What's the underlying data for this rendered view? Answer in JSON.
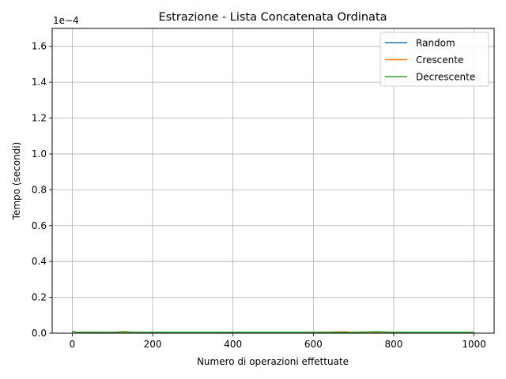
{
  "chart_data": {
    "type": "line",
    "title": "Estrazione - Lista Concatenata Ordinata",
    "xlabel": "Numero di operazioni effettuate",
    "ylabel": "Tempo (secondi)",
    "y_offset_label": "1e−4",
    "xlim": [
      -50,
      1050
    ],
    "ylim": [
      0,
      1.7
    ],
    "y_scale_note": "values shown in units of 1e-4 seconds",
    "x_ticks": [
      0,
      200,
      400,
      600,
      800,
      1000
    ],
    "x_tick_labels": [
      "0",
      "200",
      "400",
      "600",
      "800",
      "1000"
    ],
    "y_ticks": [
      0.0,
      0.2,
      0.4,
      0.6,
      0.8,
      1.0,
      1.2,
      1.4,
      1.6
    ],
    "y_tick_labels": [
      "0.0",
      "0.2",
      "0.4",
      "0.6",
      "0.8",
      "1.0",
      "1.2",
      "1.4",
      "1.6"
    ],
    "grid": true,
    "legend_position": "top-right",
    "series": [
      {
        "name": "Random",
        "color": "#1f77b4",
        "x": [
          0,
          10,
          100,
          200,
          300,
          400,
          500,
          600,
          700,
          800,
          900,
          1000
        ],
        "y": [
          0.01,
          0.005,
          0.004,
          0.004,
          0.004,
          0.004,
          0.004,
          0.004,
          0.004,
          0.004,
          0.004,
          0.004
        ]
      },
      {
        "name": "Crescente",
        "color": "#ff7f0e",
        "x": [
          0,
          10,
          100,
          200,
          300,
          400,
          500,
          600,
          680,
          700,
          800,
          900,
          1000
        ],
        "y": [
          0.01,
          0.005,
          0.004,
          0.004,
          0.004,
          0.004,
          0.004,
          0.004,
          0.008,
          0.004,
          0.004,
          0.004,
          0.004
        ]
      },
      {
        "name": "Decrescente",
        "color": "#2ca02c",
        "x": [
          0,
          10,
          100,
          130,
          150,
          200,
          300,
          400,
          500,
          600,
          700,
          760,
          800,
          900,
          1000
        ],
        "y": [
          0.01,
          0.006,
          0.005,
          0.009,
          0.005,
          0.005,
          0.005,
          0.005,
          0.005,
          0.005,
          0.005,
          0.008,
          0.005,
          0.005,
          0.005
        ]
      }
    ]
  }
}
